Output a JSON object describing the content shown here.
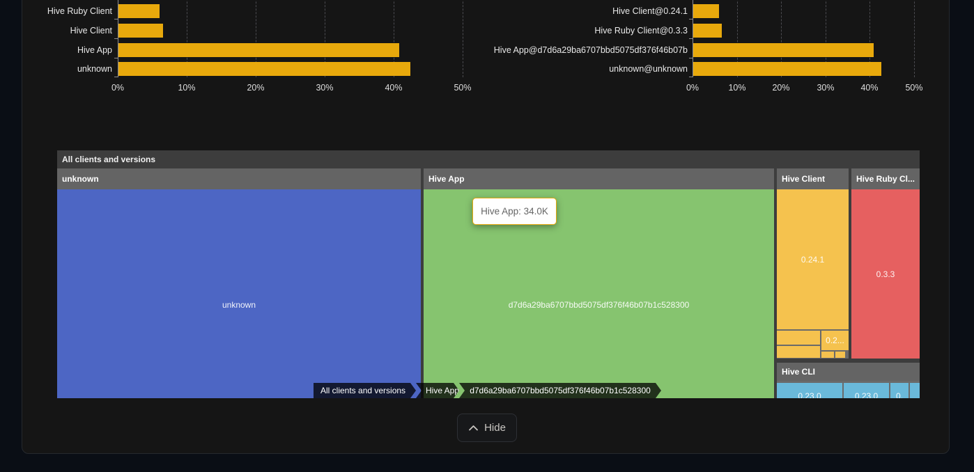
{
  "colors": {
    "bar_gold": "#E8A90C",
    "treemap_blue": "#4D66C4",
    "treemap_green": "#86C46F",
    "treemap_orange": "#F5C24E",
    "treemap_red": "#E66060",
    "treemap_cyan": "#6AB9DA",
    "header_gray": "#646464",
    "root_gray": "#3D3D3D",
    "tooltip_border": "#E8A90C"
  },
  "chart_data": [
    {
      "type": "bar",
      "id": "clients-share",
      "orientation": "horizontal",
      "categories": [
        "Hive Ruby Client",
        "Hive Client",
        "Hive App",
        "unknown"
      ],
      "values": [
        6.0,
        6.5,
        40.7,
        42.3
      ],
      "unit": "%",
      "xlim": [
        0,
        50
      ],
      "x_ticks": [
        "0%",
        "10%",
        "20%",
        "30%",
        "40%",
        "50%"
      ],
      "grid": "dashed-vertical",
      "bar_color": "#E8A90C"
    },
    {
      "type": "bar",
      "id": "client-versions-share",
      "orientation": "horizontal",
      "categories": [
        "Hive Client@0.24.1",
        "Hive Ruby Client@0.3.3",
        "Hive App@d7d6a29ba6707bbd5075df376f46b07b",
        "unknown@unknown"
      ],
      "values": [
        5.8,
        6.5,
        40.8,
        42.5
      ],
      "unit": "%",
      "xlim": [
        0,
        50
      ],
      "x_ticks": [
        "0%",
        "10%",
        "20%",
        "30%",
        "40%",
        "50%"
      ],
      "grid": "dashed-vertical",
      "bar_color": "#E8A90C"
    },
    {
      "type": "treemap",
      "id": "all-clients-and-versions",
      "title": "All clients and versions",
      "tooltip": {
        "text": "Hive App: 34.0K"
      },
      "breadcrumb": [
        "All clients and versions",
        "Hive App",
        "d7d6a29ba6707bbd5075df376f46b07b1c528300"
      ],
      "nodes": [
        {
          "name": "unknown",
          "label": "unknown",
          "color": "#4D66C4"
        },
        {
          "name": "Hive App",
          "label": "d7d6a29ba6707bbd5075df376f46b07b1c528300",
          "value": "34.0K",
          "color": "#86C46F"
        },
        {
          "name": "Hive Client",
          "color": "#F5C24E",
          "children": [
            "0.24.1",
            "0.2..."
          ]
        },
        {
          "name": "Hive Ruby Client",
          "header": "Hive Ruby Cl...",
          "color": "#E66060",
          "children": [
            "0.3.3"
          ]
        },
        {
          "name": "Hive CLI",
          "color": "#6AB9DA",
          "children": [
            "0.23.0",
            "0.23.0",
            "0."
          ]
        }
      ]
    }
  ],
  "footer": {
    "hide_label": "Hide"
  }
}
